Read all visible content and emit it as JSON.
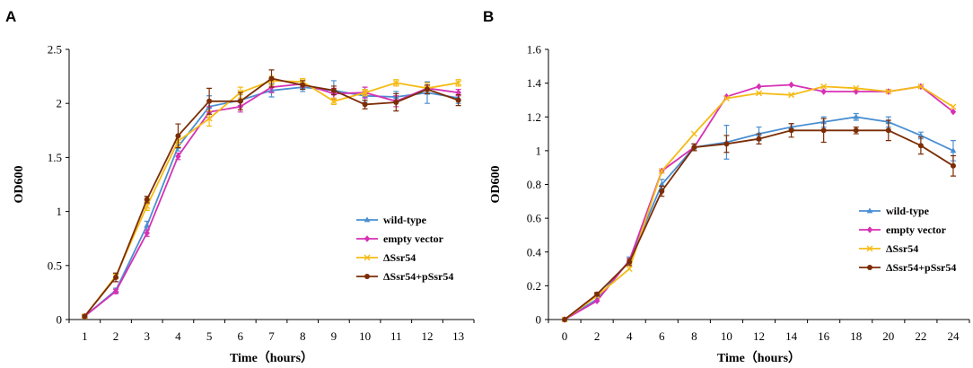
{
  "chart_data": [
    {
      "panel": "A",
      "type": "line",
      "xlabel": "Time（hours）",
      "ylabel": "OD600",
      "x": [
        1,
        2,
        3,
        4,
        5,
        6,
        7,
        8,
        9,
        10,
        11,
        12,
        13
      ],
      "xticks": [
        1,
        2,
        3,
        4,
        5,
        6,
        7,
        8,
        9,
        10,
        11,
        12,
        13
      ],
      "xlim": [
        0.5,
        13.5
      ],
      "ylim": [
        0,
        2.5
      ],
      "yticks": [
        0,
        0.5,
        1,
        1.5,
        2,
        2.5
      ],
      "ytick_labels": [
        "0",
        "0.5",
        "1",
        "1.5",
        "2",
        "2.5"
      ],
      "legend_position": "right-middle",
      "series": [
        {
          "name": "wild-type",
          "color": "#4a8fd1",
          "marker": "triangle",
          "values": [
            0.03,
            0.27,
            0.87,
            1.6,
            1.97,
            2.03,
            2.12,
            2.15,
            2.12,
            2.07,
            2.06,
            2.1,
            2.05
          ],
          "errors": [
            0.01,
            0.02,
            0.04,
            0.04,
            0.1,
            0.05,
            0.06,
            0.04,
            0.09,
            0.06,
            0.05,
            0.1,
            0.05
          ]
        },
        {
          "name": "empty vector",
          "color": "#d631b5",
          "marker": "diamond",
          "values": [
            0.03,
            0.26,
            0.8,
            1.51,
            1.92,
            1.97,
            2.15,
            2.18,
            2.09,
            2.1,
            2.02,
            2.14,
            2.1
          ],
          "errors": [
            0.01,
            0.02,
            0.03,
            0.03,
            0.05,
            0.05,
            0.05,
            0.03,
            0.05,
            0.05,
            0.05,
            0.05,
            0.03
          ]
        },
        {
          "name": "ΔSsr54",
          "color": "#f5bb14",
          "marker": "x",
          "values": [
            0.03,
            0.4,
            1.05,
            1.65,
            1.86,
            2.1,
            2.21,
            2.2,
            2.02,
            2.1,
            2.19,
            2.14,
            2.19
          ],
          "errors": [
            0.01,
            0.02,
            0.04,
            0.05,
            0.07,
            0.05,
            0.04,
            0.03,
            0.03,
            0.03,
            0.03,
            0.05,
            0.03
          ]
        },
        {
          "name": "ΔSsr54+pSsr54",
          "color": "#7b2d06",
          "marker": "circle",
          "values": [
            0.03,
            0.39,
            1.11,
            1.7,
            2.02,
            2.02,
            2.23,
            2.17,
            2.12,
            1.99,
            2.01,
            2.13,
            2.03
          ],
          "errors": [
            0.01,
            0.04,
            0.03,
            0.11,
            0.12,
            0.08,
            0.08,
            0.04,
            0.04,
            0.04,
            0.08,
            0.04,
            0.05
          ]
        }
      ]
    },
    {
      "panel": "B",
      "type": "line",
      "xlabel": "Time（hours）",
      "ylabel": "OD600",
      "x": [
        0,
        2,
        4,
        6,
        8,
        10,
        12,
        14,
        16,
        18,
        20,
        22,
        24
      ],
      "xticks": [
        0,
        2,
        4,
        6,
        8,
        10,
        12,
        14,
        16,
        18,
        20,
        22,
        24
      ],
      "xlim": [
        -1,
        25
      ],
      "ylim": [
        0,
        1.6
      ],
      "yticks": [
        0,
        0.2,
        0.4,
        0.6,
        0.8,
        1,
        1.2,
        1.4,
        1.6
      ],
      "ytick_labels": [
        "0",
        "0.2",
        "0.4",
        "0.6",
        "0.8",
        "1",
        "1.2",
        "1.4",
        "1.6"
      ],
      "legend_position": "right-middle",
      "series": [
        {
          "name": "wild-type",
          "color": "#4a8fd1",
          "marker": "triangle",
          "values": [
            0,
            0.12,
            0.35,
            0.8,
            1.02,
            1.05,
            1.1,
            1.14,
            1.17,
            1.2,
            1.17,
            1.09,
            1.0
          ],
          "errors": [
            0,
            0.01,
            0.02,
            0.03,
            0.02,
            0.1,
            0.04,
            0.02,
            0.03,
            0.02,
            0.03,
            0.02,
            0.06
          ]
        },
        {
          "name": "empty vector",
          "color": "#d631b5",
          "marker": "diamond",
          "values": [
            0,
            0.11,
            0.35,
            0.88,
            1.02,
            1.32,
            1.38,
            1.39,
            1.35,
            1.35,
            1.35,
            1.38,
            1.23
          ]
        },
        {
          "name": "ΔSsr54",
          "color": "#f5bb14",
          "marker": "x",
          "values": [
            0,
            0.14,
            0.3,
            0.88,
            1.1,
            1.31,
            1.34,
            1.33,
            1.38,
            1.37,
            1.35,
            1.38,
            1.26
          ]
        },
        {
          "name": "ΔSsr54+pSsr54",
          "color": "#7b2d06",
          "marker": "circle",
          "values": [
            0,
            0.15,
            0.34,
            0.76,
            1.02,
            1.04,
            1.07,
            1.12,
            1.12,
            1.12,
            1.12,
            1.03,
            0.91
          ],
          "errors": [
            0,
            0.01,
            0.02,
            0.03,
            0.02,
            0.05,
            0.03,
            0.04,
            0.07,
            0.02,
            0.06,
            0.05,
            0.06
          ]
        }
      ]
    }
  ]
}
